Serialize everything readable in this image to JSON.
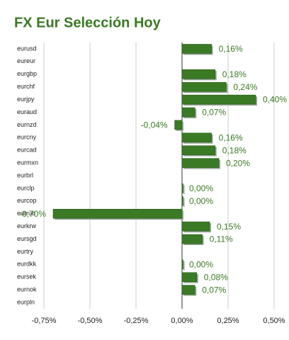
{
  "chart_data": {
    "type": "bar",
    "orientation": "horizontal",
    "title": "FX Eur Selección Hoy",
    "categories": [
      "eurusd",
      "eureur",
      "eurgbp",
      "eurchf",
      "eurjpy",
      "euraud",
      "eurnzd",
      "eurcny",
      "eurcad",
      "eurmxn",
      "eurbrl",
      "eurclp",
      "eurcop",
      "eurrub",
      "eurkrw",
      "eursgd",
      "eurtry",
      "eurdkk",
      "eursek",
      "eurnok",
      "eurpln"
    ],
    "values": [
      0.16,
      null,
      0.18,
      0.24,
      0.4,
      0.07,
      -0.04,
      0.16,
      0.18,
      0.2,
      null,
      0.0,
      0.0,
      -0.7,
      0.15,
      0.11,
      null,
      0.0,
      0.08,
      0.07,
      null
    ],
    "value_labels": [
      "0,16%",
      null,
      "0,18%",
      "0,24%",
      "0,40%",
      "0,07%",
      "-0,04%",
      "0,16%",
      "0,18%",
      "0,20%",
      null,
      "0,00%",
      "0,00%",
      "-0,70%",
      "0,15%",
      "0,11%",
      null,
      "0,00%",
      "0,08%",
      "0,07%",
      null
    ],
    "color": "#3a7a24",
    "xlim": [
      -0.75,
      0.5
    ],
    "xticks": [
      {
        "value": -0.75,
        "label": "-0,75%"
      },
      {
        "value": -0.5,
        "label": "-0,50%"
      },
      {
        "value": -0.25,
        "label": "-0,25%"
      },
      {
        "value": 0,
        "label": "0,00%"
      },
      {
        "value": 0.25,
        "label": "0,25%"
      },
      {
        "value": 0.5,
        "label": "0,50%"
      }
    ],
    "grid": true
  }
}
